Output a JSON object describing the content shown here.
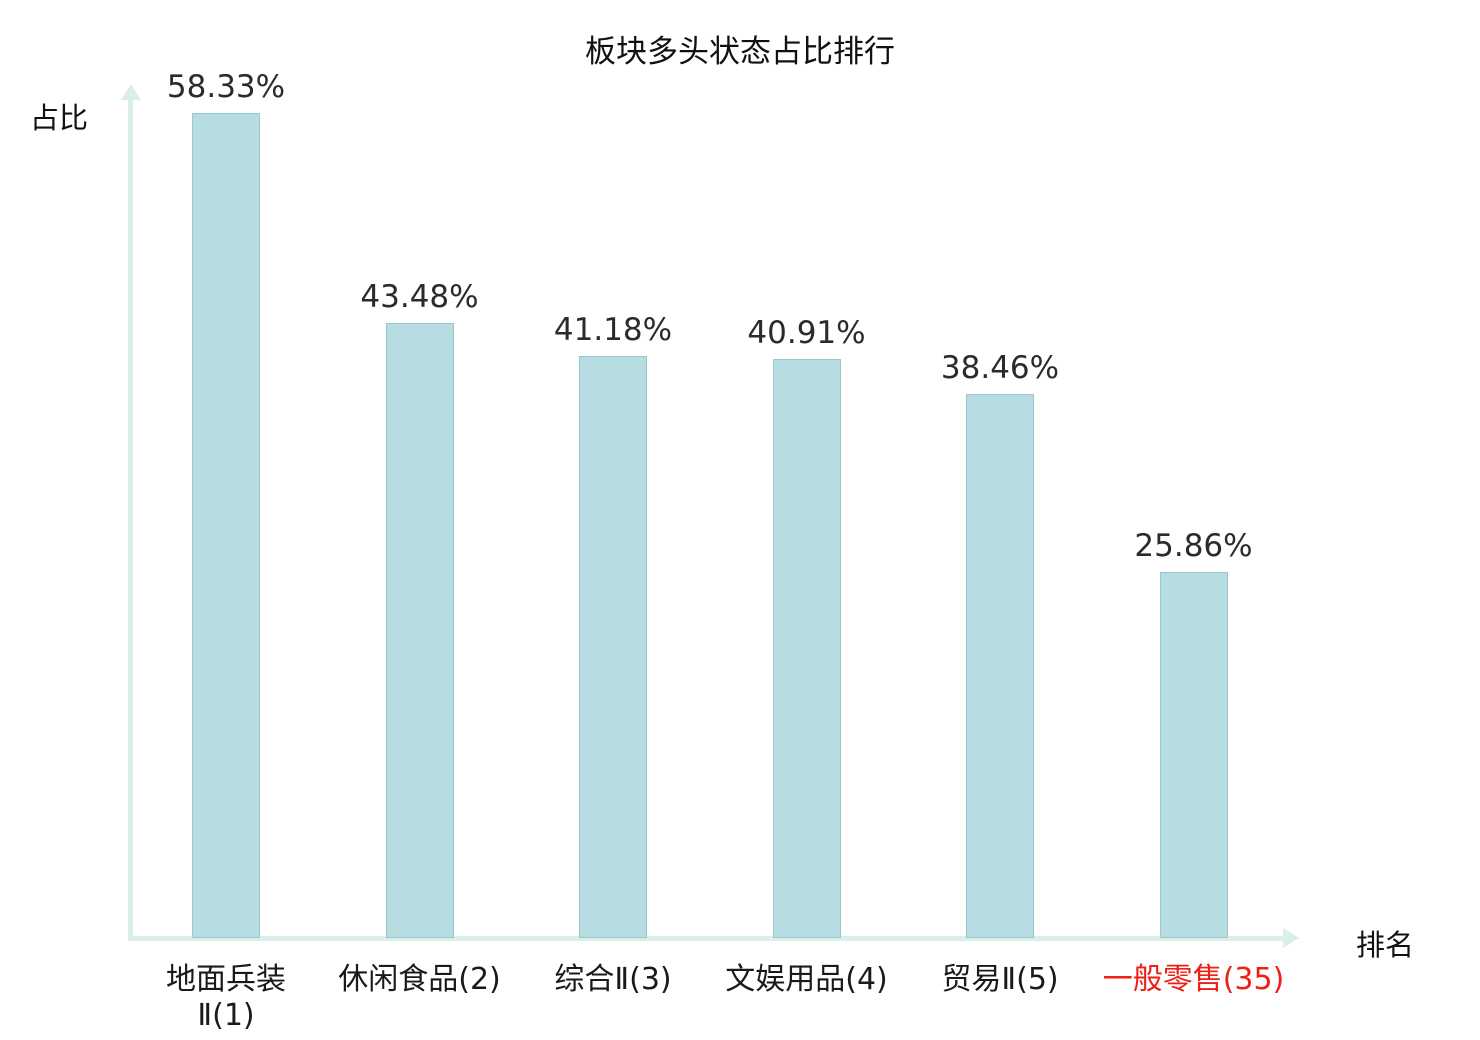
{
  "chart_data": {
    "type": "bar",
    "title": "板块多头状态占比排行",
    "xlabel": "排名",
    "ylabel": "占比",
    "categories": [
      "地面兵装\nⅡ(1)",
      "休闲食品(2)",
      "综合Ⅱ(3)",
      "文娱用品(4)",
      "贸易Ⅱ(5)",
      "一般零售(35)"
    ],
    "values": [
      58.33,
      43.48,
      41.18,
      40.91,
      38.46,
      25.86
    ],
    "value_labels": [
      "58.33%",
      "43.48%",
      "41.18%",
      "40.91%",
      "38.46%",
      "25.86%"
    ],
    "highlight_index": 5,
    "highlight_color": "#ef1f16",
    "bar_color": "#b7dde2",
    "bar_border_color": "#96c8d0",
    "axis_color": "#d9efe7",
    "ylim": [
      0,
      60
    ],
    "legend": "none",
    "grid": "off"
  }
}
